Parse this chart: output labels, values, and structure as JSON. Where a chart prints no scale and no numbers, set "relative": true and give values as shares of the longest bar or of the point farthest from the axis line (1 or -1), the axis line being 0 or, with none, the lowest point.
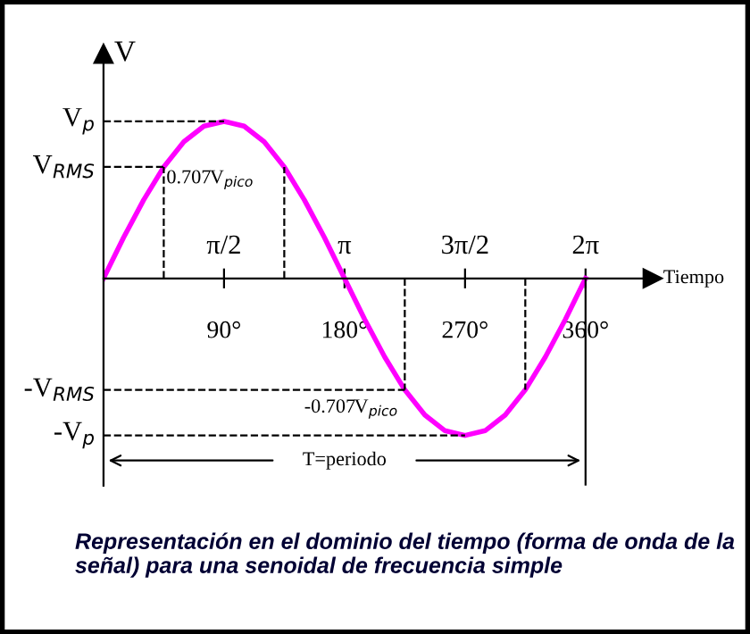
{
  "chart_data": {
    "type": "line",
    "relative": true,
    "xlabel": "Tiempo",
    "ylabel": "V",
    "x": [
      0,
      15,
      30,
      45,
      60,
      75,
      90,
      105,
      120,
      135,
      150,
      165,
      180,
      195,
      210,
      225,
      240,
      255,
      270,
      285,
      300,
      315,
      330,
      345,
      360
    ],
    "series": [
      {
        "color": "#ff00ff",
        "values": [
          0,
          0.26,
          0.5,
          0.71,
          0.87,
          0.97,
          1,
          0.97,
          0.87,
          0.71,
          0.5,
          0.26,
          0,
          -0.26,
          -0.5,
          -0.71,
          -0.87,
          -0.97,
          -1,
          -0.97,
          -0.87,
          -0.71,
          -0.5,
          -0.26,
          0
        ]
      }
    ],
    "xlim": [
      0,
      410
    ],
    "xticks": [
      {
        "value": 90,
        "label": "90°"
      },
      {
        "value": 180,
        "label": "180°"
      },
      {
        "value": 270,
        "label": "270°"
      },
      {
        "value": 360,
        "label": "360°"
      }
    ],
    "ref_lines": [
      {
        "axis": "y",
        "value": 1,
        "label": "V$_{p}$",
        "line_style": "dashed"
      },
      {
        "axis": "y",
        "value": 0.71,
        "label": "V$_{RMS}$",
        "line_style": "dashed"
      },
      {
        "axis": "y",
        "value": -0.71,
        "label": "-V$_{RMS}$",
        "line_style": "dashed"
      },
      {
        "axis": "y",
        "value": -1,
        "label": "-V$_{p}$",
        "line_style": "dashed"
      },
      {
        "axis": "x",
        "value": 45,
        "label": null,
        "line_style": "dashed"
      },
      {
        "axis": "x",
        "value": 135,
        "label": null,
        "line_style": "dashed"
      },
      {
        "axis": "x",
        "value": 225,
        "label": null,
        "line_style": "dashed"
      },
      {
        "axis": "x",
        "value": 315,
        "label": null,
        "line_style": "dashed"
      }
    ],
    "annotations": [
      {
        "text": "0.707V$_{pico}$",
        "x": 45,
        "y": 0.71
      },
      {
        "text": "-0.707V$_{pico}$",
        "x": 225,
        "y": -0.71
      },
      "π/2",
      "π",
      "3π/2",
      "2π",
      "T=periodo",
      "Representación en el dominio del tiempo (forma de onda de la señal) para una senoidal de frecuencia simple"
    ]
  }
}
